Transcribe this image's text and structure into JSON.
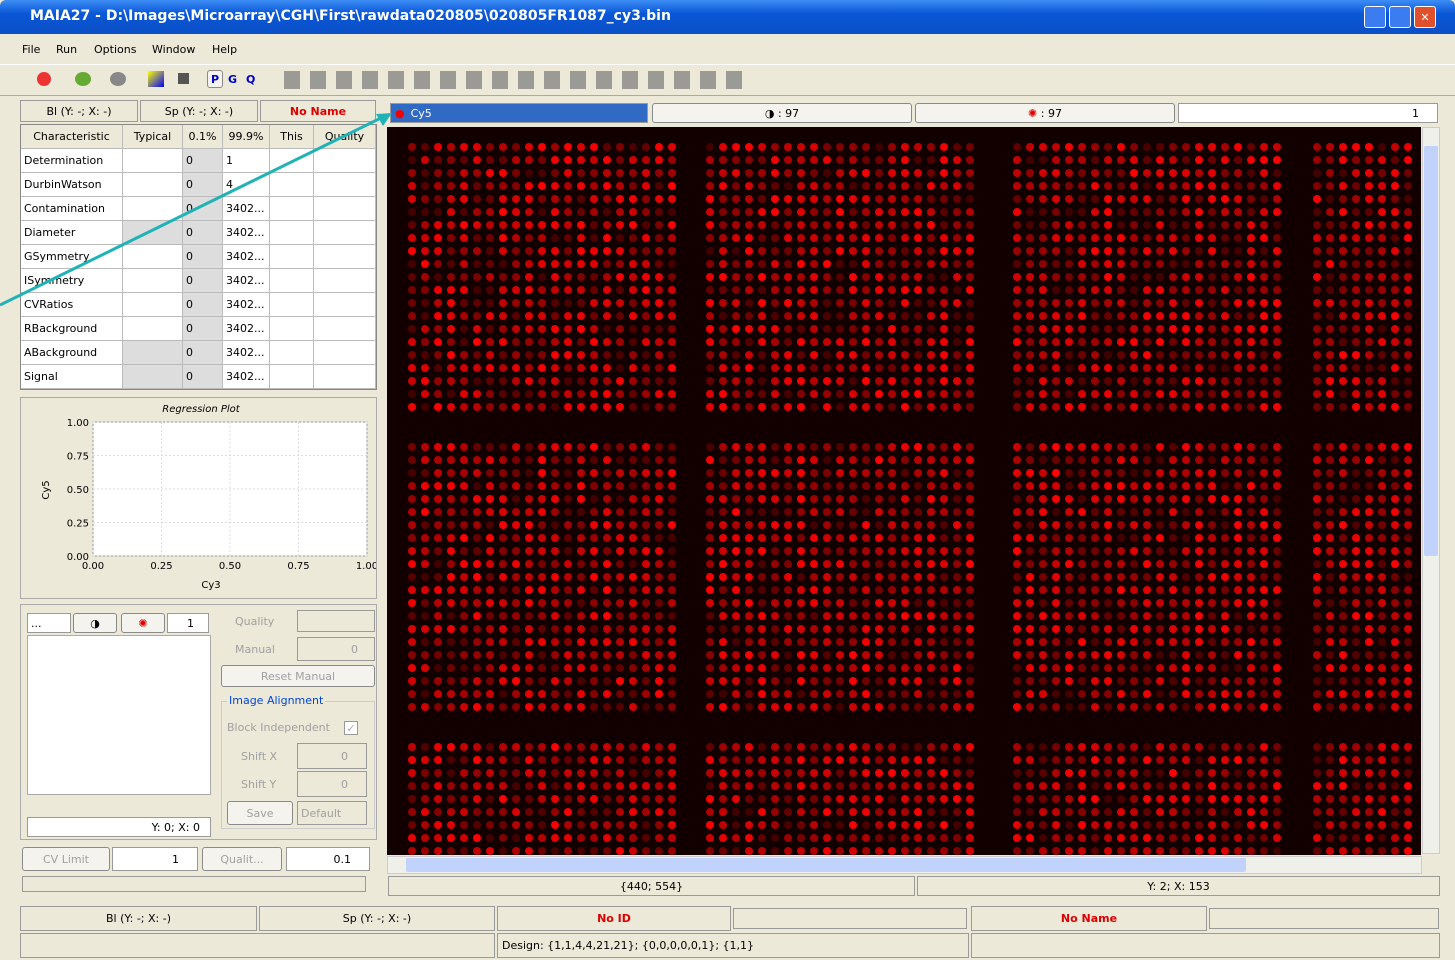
{
  "window": {
    "title": "MAIA27 - D:\\Images\\Microarray\\CGH\\First\\rawdata020805\\020805FR1087_cy3.bin"
  },
  "menu": [
    "File",
    "Run",
    "Options",
    "Window",
    "Help"
  ],
  "toolbar": {
    "letters": [
      "P",
      "G",
      "Q"
    ]
  },
  "left_panel": {
    "header": [
      "Bl (Y: -; X: -)",
      "Sp (Y: -; X: -)",
      "No Name"
    ],
    "table": {
      "columns": [
        "Characteristic",
        "Typical",
        "0.1%",
        "99.9%",
        "This",
        "Quality"
      ],
      "rows": [
        {
          "name": "Determination",
          "low": "0",
          "high": "1"
        },
        {
          "name": "DurbinWatson",
          "low": "0",
          "high": "4"
        },
        {
          "name": "Contamination",
          "low": "0",
          "high": "3402..."
        },
        {
          "name": "Diameter",
          "low": "0",
          "high": "3402..."
        },
        {
          "name": "GSymmetry",
          "low": "0",
          "high": "3402..."
        },
        {
          "name": "ISymmetry",
          "low": "0",
          "high": "3402..."
        },
        {
          "name": "CVRatios",
          "low": "0",
          "high": "3402..."
        },
        {
          "name": "RBackground",
          "low": "0",
          "high": "3402..."
        },
        {
          "name": "ABackground",
          "low": "0",
          "high": "3402..."
        },
        {
          "name": "Signal",
          "low": "0",
          "high": "3402..."
        }
      ]
    }
  },
  "regression_plot": {
    "title": "Regression Plot",
    "x_label": "Cy3",
    "y_label": "Cy5",
    "xticks": [
      "0.00",
      "0.25",
      "0.50",
      "0.75",
      "1.00"
    ],
    "yticks": [
      "0.00",
      "0.25",
      "0.50",
      "0.75",
      "1.00"
    ]
  },
  "controls": {
    "dropdown": "...",
    "spinner": "1",
    "quality": "Quality",
    "manual": "Manual",
    "manual_value": "0",
    "reset": "Reset Manual",
    "alignment": "Image Alignment",
    "block_independent": "Block Independent",
    "shift_x": "Shift X",
    "shift_x_value": "0",
    "shift_y": "Shift Y",
    "shift_y_value": "0",
    "save": "Save",
    "default": "Default",
    "position": "Y: 0; X: 0",
    "cv_limit": "CV Limit",
    "cv_value": "1",
    "quality_short": "Qualit...",
    "quality_value": "0.1"
  },
  "image_header": {
    "channel": "Cy5",
    "left_count": ": 97",
    "right_count": ": 97",
    "spinner": "1"
  },
  "image_status": [
    "{440; 554}",
    "Y: 2; X: 153"
  ],
  "status_bar": {
    "bl": "Bl (Y: -; X: -)",
    "sp": "Sp (Y: -; X: -)",
    "id": "No ID",
    "name": "No Name",
    "design": "Design: {1,1,4,4,21,21}; {0,0,0,0,0,1}; {1,1}"
  }
}
